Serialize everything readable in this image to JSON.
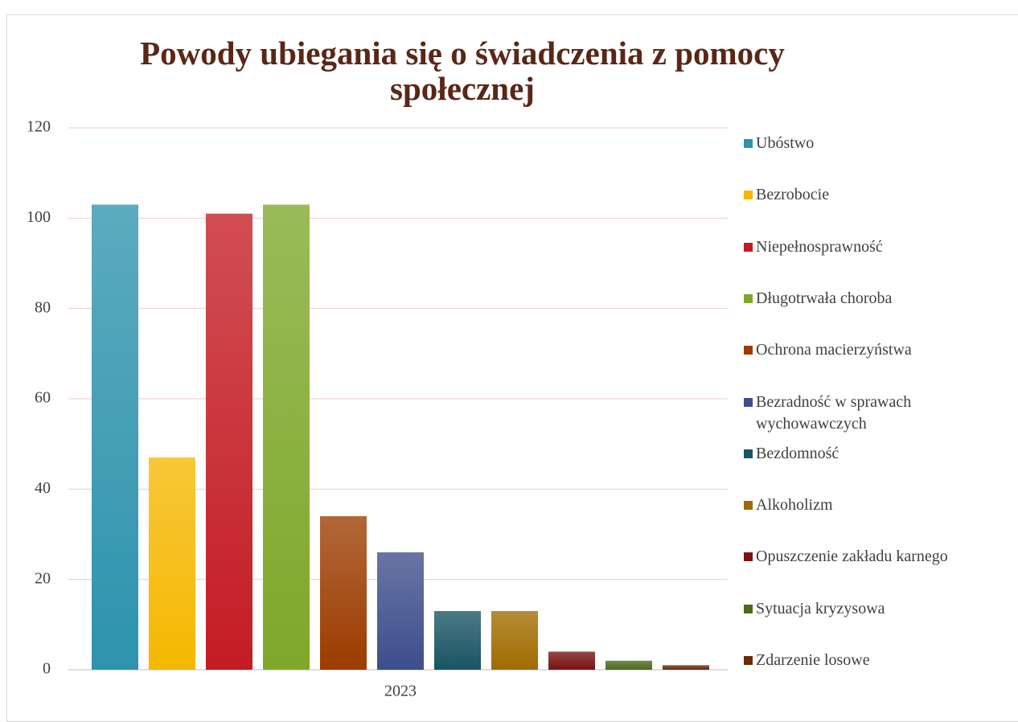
{
  "chart_data": {
    "type": "bar",
    "title": "Powody ubiegania się o świadczenia z pomocy społecznej",
    "categories": [
      "2023"
    ],
    "series": [
      {
        "name": "Ubóstwo",
        "color": "#2e93ad",
        "values": [
          103
        ]
      },
      {
        "name": "Bezrobocie",
        "color": "#f5b800",
        "values": [
          47
        ]
      },
      {
        "name": "Niepełnosprawność",
        "color": "#c41c24",
        "values": [
          101
        ]
      },
      {
        "name": "Długotrwała choroba",
        "color": "#7ea82a",
        "values": [
          103
        ]
      },
      {
        "name": "Ochrona macierzyństwa",
        "color": "#9c3c00",
        "values": [
          34
        ]
      },
      {
        "name": "Bezradność w sprawach wychowawczych",
        "color": "#3d4e8c",
        "values": [
          26
        ]
      },
      {
        "name": "Bezdomność",
        "color": "#1a5464",
        "values": [
          13
        ]
      },
      {
        "name": "Alkoholizm",
        "color": "#a06b00",
        "values": [
          13
        ]
      },
      {
        "name": "Opuszczenie zakładu karnego",
        "color": "#7a1212",
        "values": [
          4
        ]
      },
      {
        "name": "Sytuacja kryzysowa",
        "color": "#4b6a1c",
        "values": [
          2
        ]
      },
      {
        "name": "Zdarzenie losowe",
        "color": "#6a2a0c",
        "values": [
          1
        ]
      }
    ],
    "ylim": [
      0,
      120
    ],
    "yticks": [
      0,
      20,
      40,
      60,
      80,
      100,
      120
    ],
    "grid": true,
    "legend": "right"
  }
}
